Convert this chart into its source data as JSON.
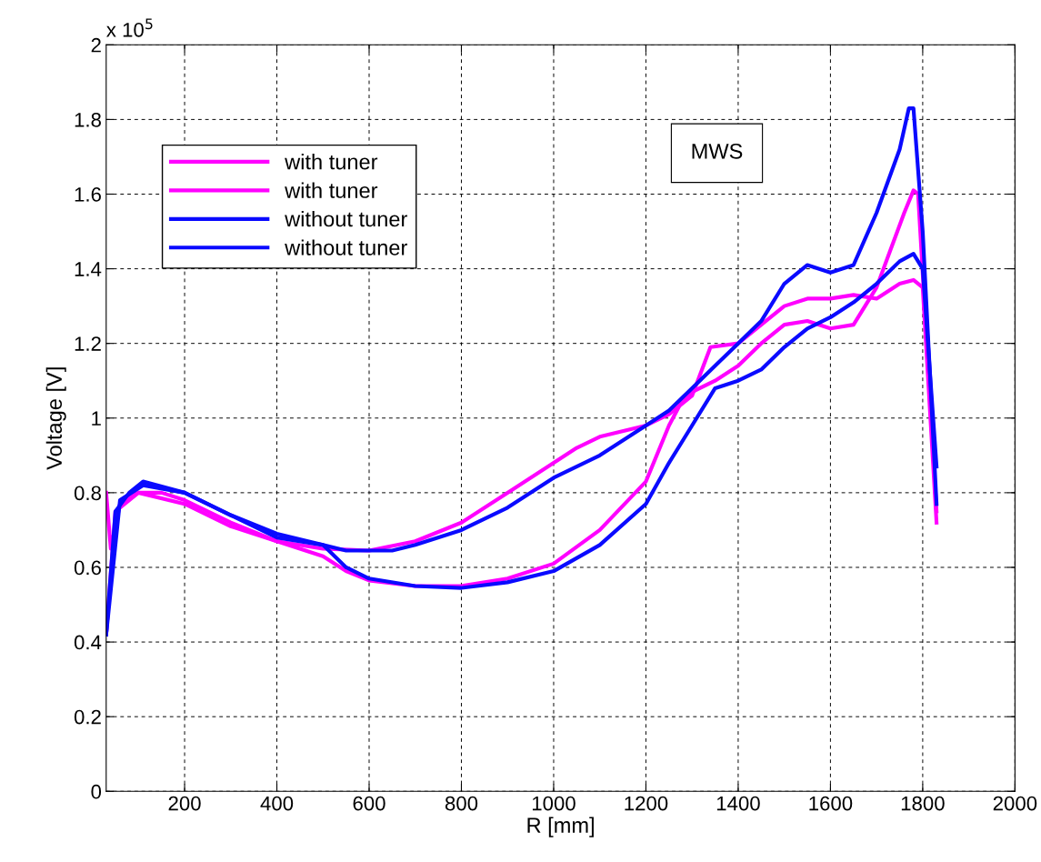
{
  "chart_data": {
    "type": "line",
    "xlabel": "R [mm]",
    "ylabel": "Voltage [V]",
    "xlim": [
      30,
      2000
    ],
    "xticks": [
      200,
      400,
      600,
      800,
      1000,
      1200,
      1400,
      1600,
      1800,
      2000
    ],
    "ylim": [
      0,
      2
    ],
    "yticks": [
      0,
      0.2,
      0.4,
      0.6,
      0.8,
      1,
      1.2,
      1.4,
      1.6,
      1.8,
      2
    ],
    "grid": true,
    "legend": "top left",
    "line_style": "solid",
    "marker": "none",
    "annotations": [
      "x 10$^{5}$",
      "MWS"
    ],
    "series": [
      {
        "name": "with tuner",
        "color": "#ff00ff",
        "x": [
          30,
          40,
          60,
          80,
          100,
          150,
          200,
          300,
          400,
          500,
          600,
          700,
          800,
          900,
          1000,
          1050,
          1100,
          1200,
          1250,
          1300,
          1340,
          1400,
          1450,
          1500,
          1550,
          1600,
          1650,
          1700,
          1750,
          1780,
          1800,
          1830
        ],
        "values": [
          0.8,
          0.65,
          0.77,
          0.79,
          0.8,
          0.8,
          0.78,
          0.72,
          0.67,
          0.65,
          0.645,
          0.67,
          0.72,
          0.8,
          0.88,
          0.92,
          0.95,
          0.98,
          1.01,
          1.06,
          1.19,
          1.2,
          1.25,
          1.3,
          1.32,
          1.32,
          1.33,
          1.32,
          1.36,
          1.37,
          1.35,
          0.72
        ]
      },
      {
        "name": "with tuner",
        "color": "#ff00ff",
        "x": [
          30,
          50,
          100,
          200,
          300,
          400,
          500,
          550,
          600,
          700,
          800,
          900,
          1000,
          1100,
          1200,
          1250,
          1280,
          1300,
          1350,
          1400,
          1450,
          1500,
          1550,
          1600,
          1650,
          1700,
          1730,
          1760,
          1780,
          1790,
          1830
        ],
        "values": [
          0.42,
          0.75,
          0.8,
          0.77,
          0.71,
          0.67,
          0.63,
          0.59,
          0.565,
          0.55,
          0.55,
          0.57,
          0.61,
          0.7,
          0.83,
          0.98,
          1.05,
          1.07,
          1.1,
          1.14,
          1.2,
          1.25,
          1.26,
          1.24,
          1.25,
          1.35,
          1.45,
          1.55,
          1.61,
          1.6,
          0.75
        ]
      },
      {
        "name": "without tuner",
        "color": "#0a0aff",
        "x": [
          30,
          50,
          80,
          110,
          200,
          300,
          400,
          500,
          550,
          650,
          700,
          800,
          900,
          1000,
          1100,
          1200,
          1250,
          1300,
          1350,
          1400,
          1450,
          1500,
          1550,
          1600,
          1650,
          1700,
          1750,
          1770,
          1780,
          1800,
          1830
        ],
        "values": [
          0.42,
          0.75,
          0.8,
          0.83,
          0.8,
          0.74,
          0.69,
          0.66,
          0.645,
          0.645,
          0.66,
          0.7,
          0.76,
          0.84,
          0.9,
          0.98,
          1.02,
          1.08,
          1.14,
          1.2,
          1.26,
          1.36,
          1.41,
          1.39,
          1.41,
          1.55,
          1.72,
          1.83,
          1.83,
          1.5,
          0.77
        ]
      },
      {
        "name": "without tuner",
        "color": "#0a0aff",
        "x": [
          30,
          60,
          110,
          200,
          300,
          400,
          500,
          550,
          600,
          700,
          800,
          900,
          1000,
          1100,
          1200,
          1250,
          1300,
          1350,
          1400,
          1450,
          1500,
          1550,
          1600,
          1650,
          1700,
          1750,
          1780,
          1800,
          1830
        ],
        "values": [
          0.42,
          0.78,
          0.82,
          0.8,
          0.74,
          0.68,
          0.66,
          0.6,
          0.57,
          0.55,
          0.545,
          0.56,
          0.59,
          0.66,
          0.77,
          0.88,
          0.98,
          1.08,
          1.1,
          1.13,
          1.19,
          1.24,
          1.27,
          1.31,
          1.36,
          1.42,
          1.44,
          1.4,
          0.87
        ]
      }
    ]
  }
}
